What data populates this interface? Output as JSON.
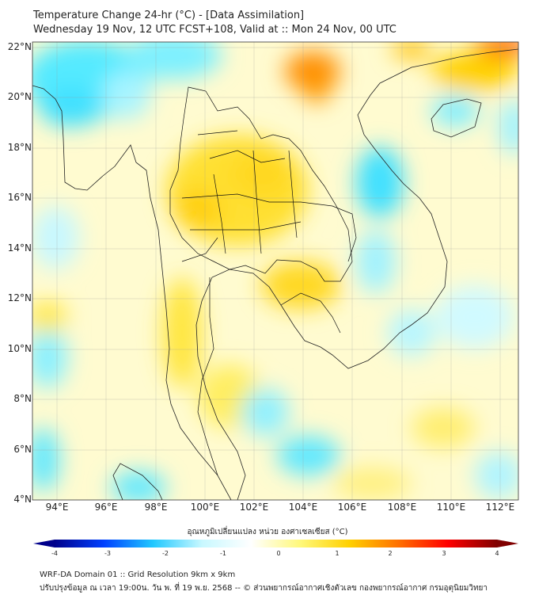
{
  "header": {
    "title": "Temperature Change 24-hr (°C) - [Data Assimilation]",
    "subtitle": "Wednesday 19 Nov, 12 UTC FCST+108, Valid at :: Mon 24 Nov, 00 UTC"
  },
  "map": {
    "lat_labels": [
      "22°N",
      "20°N",
      "18°N",
      "16°N",
      "14°N",
      "12°N",
      "10°N",
      "8°N",
      "6°N",
      "4°N"
    ],
    "lon_labels": [
      "94°E",
      "96°E",
      "98°E",
      "100°E",
      "102°E",
      "104°E",
      "106°E",
      "108°E",
      "110°E",
      "112°E"
    ]
  },
  "colorbar": {
    "label": "อุณหภูมิเปลี่ยนแปลง หน่วย องศาเซลเซียส (°C)",
    "ticks": [
      "-4",
      "-3",
      "-2",
      "-1",
      "0",
      "1",
      "2",
      "3",
      "4"
    ],
    "range": [
      -4,
      4
    ],
    "colors": [
      "#00008b",
      "#0040ff",
      "#20c8ff",
      "#c8f8ff",
      "#ffffff",
      "#fff87a",
      "#ffd000",
      "#ff7000",
      "#ff0000",
      "#800000"
    ]
  },
  "footer": {
    "line1": "WRF-DA Domain 01 :: Grid Resolution 9km x 9km",
    "line2": "ปรับปรุงข้อมูล ณ เวลา 19:00น. วัน พ. ที่ 19 พ.ย. 2568 -- © ส่วนพยากรณ์อากาศเชิงตัวเลข กองพยากรณ์อากาศ กรมอุตุนิยมวิทยา"
  }
}
